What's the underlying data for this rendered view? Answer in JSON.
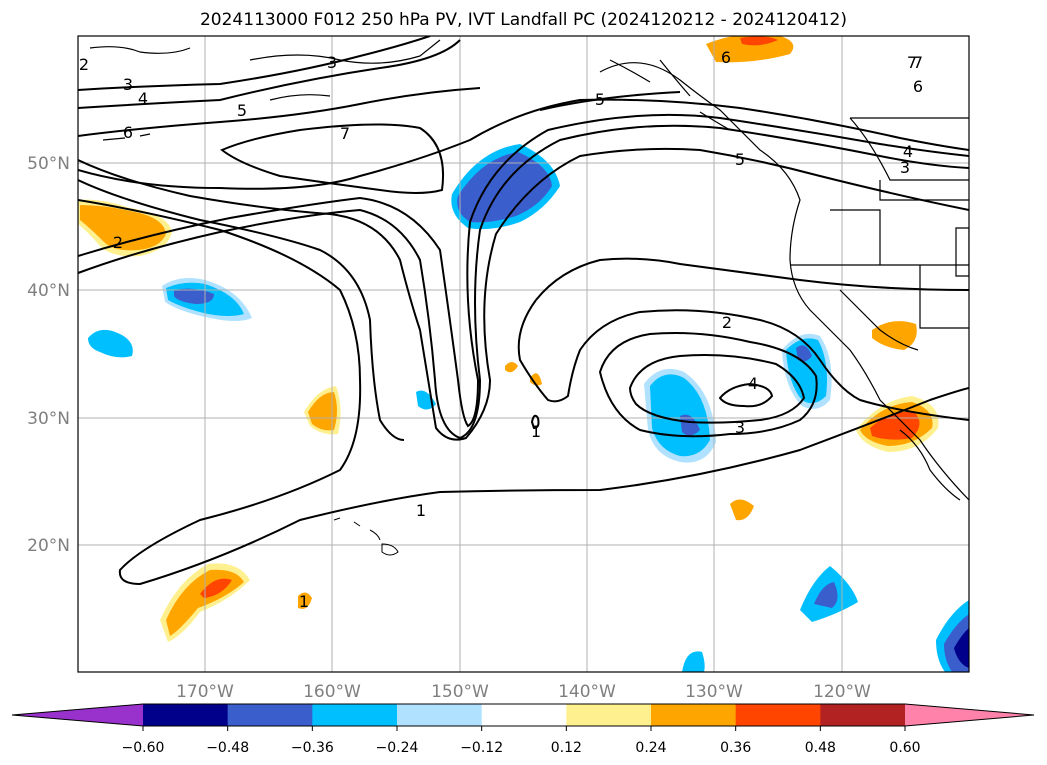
{
  "title": "2024113000 F012 250 hPa PV, IVT Landfall PC (2024120212 - 2024120412)",
  "lat_labels": [
    "50°N",
    "40°N",
    "30°N",
    "20°N"
  ],
  "lon_labels": [
    "170°W",
    "160°W",
    "150°W",
    "140°W",
    "130°W",
    "120°W"
  ],
  "colorbar": {
    "ticks": [
      "−0.60",
      "−0.48",
      "−0.36",
      "−0.24",
      "−0.12",
      "0.12",
      "0.24",
      "0.36",
      "0.48",
      "0.60"
    ],
    "colors": [
      "#9932cc",
      "#00008b",
      "#3a5fcd",
      "#00bfff",
      "#b0e2ff",
      "#ffffff",
      "#fff08f",
      "#ffa500",
      "#ff4500",
      "#b22222",
      "#ff82ab"
    ]
  },
  "contour_labels": [
    "2",
    "3",
    "4",
    "5",
    "6",
    "7",
    "3",
    "5",
    "6",
    "5",
    "7",
    "4",
    "3",
    "6",
    "7",
    "1",
    "2",
    "2",
    "4",
    "3",
    "1",
    "1"
  ],
  "colors": {
    "land_line": "#000000",
    "grid": "#b0b0b0"
  }
}
